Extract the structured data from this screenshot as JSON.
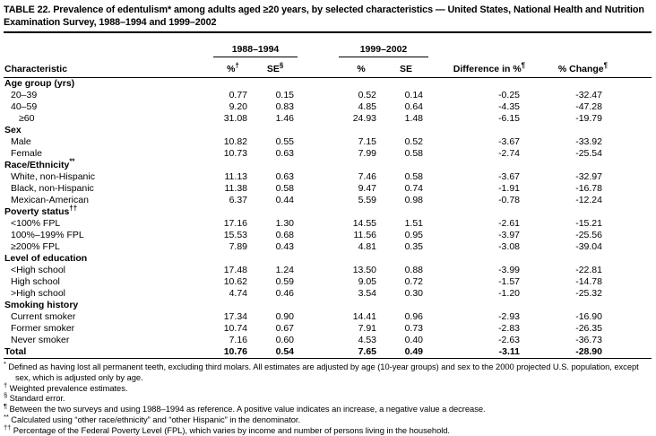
{
  "title": "TABLE 22. Prevalence of edentulism* among adults aged ≥20 years, by selected characteristics — United States, National Health and Nutrition Examination Survey, 1988–1994 and 1999–2002",
  "colors": {
    "background": "#ffffff",
    "text": "#000000",
    "rule": "#000000"
  },
  "table": {
    "group_headers": {
      "g1": "1988–1994",
      "g2": "1999–2002"
    },
    "headers": {
      "characteristic": "Characteristic",
      "pct1": {
        "text": "%",
        "sup": "†"
      },
      "se1": {
        "text": "SE",
        "sup": "§"
      },
      "pct2": {
        "text": "%",
        "sup": ""
      },
      "se2": {
        "text": "SE",
        "sup": ""
      },
      "diff": {
        "text": "Difference in %",
        "sup": "¶"
      },
      "chg": {
        "text": "% Change",
        "sup": "¶"
      }
    },
    "rows": [
      {
        "label": "Age group (yrs)",
        "type": "section",
        "indent": 0
      },
      {
        "label": "20–39",
        "indent": 1,
        "values": [
          "0.77",
          "0.15",
          "0.52",
          "0.14",
          "-0.25",
          "-32.47"
        ]
      },
      {
        "label": "40–59",
        "indent": 1,
        "values": [
          "9.20",
          "0.83",
          "4.85",
          "0.64",
          "-4.35",
          "-47.28"
        ]
      },
      {
        "label": "≥60",
        "indent": 2,
        "values": [
          "31.08",
          "1.46",
          "24.93",
          "1.48",
          "-6.15",
          "-19.79"
        ]
      },
      {
        "label": "Sex",
        "type": "section",
        "indent": 0
      },
      {
        "label": "Male",
        "indent": 1,
        "values": [
          "10.82",
          "0.55",
          "7.15",
          "0.52",
          "-3.67",
          "-33.92"
        ]
      },
      {
        "label": "Female",
        "indent": 1,
        "values": [
          "10.73",
          "0.63",
          "7.99",
          "0.58",
          "-2.74",
          "-25.54"
        ]
      },
      {
        "label": "Race/Ethnicity",
        "sup": "**",
        "type": "section",
        "indent": 0
      },
      {
        "label": "White, non-Hispanic",
        "indent": 1,
        "values": [
          "11.13",
          "0.63",
          "7.46",
          "0.58",
          "-3.67",
          "-32.97"
        ]
      },
      {
        "label": "Black, non-Hispanic",
        "indent": 1,
        "values": [
          "11.38",
          "0.58",
          "9.47",
          "0.74",
          "-1.91",
          "-16.78"
        ]
      },
      {
        "label": "Mexican-American",
        "indent": 1,
        "values": [
          "6.37",
          "0.44",
          "5.59",
          "0.98",
          "-0.78",
          "-12.24"
        ]
      },
      {
        "label": "Poverty status",
        "sup": "††",
        "type": "section",
        "indent": 0
      },
      {
        "label": "<100% FPL",
        "indent": 1,
        "values": [
          "17.16",
          "1.30",
          "14.55",
          "1.51",
          "-2.61",
          "-15.21"
        ]
      },
      {
        "label": "100%–199% FPL",
        "indent": 1,
        "values": [
          "15.53",
          "0.68",
          "11.56",
          "0.95",
          "-3.97",
          "-25.56"
        ]
      },
      {
        "label": "≥200% FPL",
        "indent": 1,
        "values": [
          "7.89",
          "0.43",
          "4.81",
          "0.35",
          "-3.08",
          "-39.04"
        ]
      },
      {
        "label": "Level of education",
        "type": "section",
        "indent": 0
      },
      {
        "label": "<High school",
        "indent": 1,
        "values": [
          "17.48",
          "1.24",
          "13.50",
          "0.88",
          "-3.99",
          "-22.81"
        ]
      },
      {
        "label": "High school",
        "indent": 1,
        "values": [
          "10.62",
          "0.59",
          "9.05",
          "0.72",
          "-1.57",
          "-14.78"
        ]
      },
      {
        "label": ">High school",
        "indent": 1,
        "values": [
          "4.74",
          "0.46",
          "3.54",
          "0.30",
          "-1.20",
          "-25.32"
        ]
      },
      {
        "label": "Smoking history",
        "type": "section",
        "indent": 0
      },
      {
        "label": "Current smoker",
        "indent": 1,
        "values": [
          "17.34",
          "0.90",
          "14.41",
          "0.96",
          "-2.93",
          "-16.90"
        ]
      },
      {
        "label": "Former smoker",
        "indent": 1,
        "values": [
          "10.74",
          "0.67",
          "7.91",
          "0.73",
          "-2.83",
          "-26.35"
        ]
      },
      {
        "label": "Never smoker",
        "indent": 1,
        "values": [
          "7.16",
          "0.60",
          "4.53",
          "0.40",
          "-2.63",
          "-36.73"
        ]
      },
      {
        "label": "Total",
        "type": "total",
        "indent": 0,
        "values": [
          "10.76",
          "0.54",
          "7.65",
          "0.49",
          "-3.11",
          "-28.90"
        ]
      }
    ]
  },
  "footnotes": [
    {
      "marker": "*",
      "text": "Defined as having lost all permanent teeth, excluding third molars. All estimates are adjusted by age (10-year groups) and sex to the 2000 projected U.S. population, except sex, which is adjusted only by age."
    },
    {
      "marker": "†",
      "text": "Weighted prevalence estimates."
    },
    {
      "marker": "§",
      "text": "Standard error."
    },
    {
      "marker": "¶",
      "text": "Between the two surveys and using 1988–1994 as reference. A positive value indicates an increase, a negative value a decrease."
    },
    {
      "marker": "**",
      "text": "Calculated using “other race/ethnicity” and “other Hispanic” in the denominator."
    },
    {
      "marker": "††",
      "text": "Percentage of the Federal Poverty Level (FPL), which varies by income and number of persons living in the household."
    }
  ]
}
